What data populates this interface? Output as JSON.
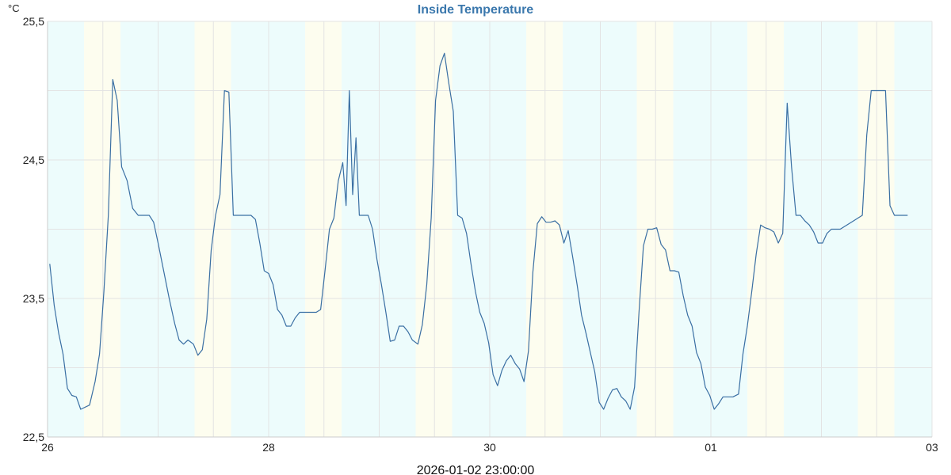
{
  "chart_data": {
    "type": "line",
    "title": "Inside Temperature",
    "y_unit": "°C",
    "footer": "2026-01-02 23:00:00",
    "xlim": [
      0,
      8
    ],
    "ylim": [
      22.5,
      25.5
    ],
    "x_ticks": [
      {
        "value": 0,
        "label": "26"
      },
      {
        "value": 2,
        "label": "28"
      },
      {
        "value": 4,
        "label": "30"
      },
      {
        "value": 6,
        "label": "01"
      },
      {
        "value": 8,
        "label": "03"
      }
    ],
    "y_ticks": [
      {
        "value": 22.5,
        "label": "22,5"
      },
      {
        "value": 23.5,
        "label": "23,5"
      },
      {
        "value": 24.5,
        "label": "24,5"
      },
      {
        "value": 25.5,
        "label": "25,5"
      }
    ],
    "grid": true,
    "grid_step_x": 0.5,
    "grid_step_y": 0.5,
    "bands": [
      {
        "from": 0.0,
        "to": 0.33,
        "kind": "night"
      },
      {
        "from": 0.33,
        "to": 0.66,
        "kind": "day"
      },
      {
        "from": 0.66,
        "to": 1.33,
        "kind": "night"
      },
      {
        "from": 1.33,
        "to": 1.66,
        "kind": "day"
      },
      {
        "from": 1.66,
        "to": 2.33,
        "kind": "night"
      },
      {
        "from": 2.33,
        "to": 2.66,
        "kind": "day"
      },
      {
        "from": 2.66,
        "to": 3.33,
        "kind": "night"
      },
      {
        "from": 3.33,
        "to": 3.66,
        "kind": "day"
      },
      {
        "from": 3.66,
        "to": 4.33,
        "kind": "night"
      },
      {
        "from": 4.33,
        "to": 4.66,
        "kind": "day"
      },
      {
        "from": 4.66,
        "to": 5.33,
        "kind": "night"
      },
      {
        "from": 5.33,
        "to": 5.66,
        "kind": "day"
      },
      {
        "from": 5.66,
        "to": 6.33,
        "kind": "night"
      },
      {
        "from": 6.33,
        "to": 6.66,
        "kind": "day"
      },
      {
        "from": 6.66,
        "to": 7.33,
        "kind": "night"
      },
      {
        "from": 7.33,
        "to": 7.66,
        "kind": "day"
      },
      {
        "from": 7.66,
        "to": 8.0,
        "kind": "night"
      }
    ],
    "colors": {
      "night": "#edfcfc",
      "day": "#fdfdef",
      "line": "#3a6fa3",
      "grid": "#e3e3e3",
      "axis": "#cccccc"
    },
    "series": [
      {
        "points": [
          [
            0.02,
            23.75
          ],
          [
            0.06,
            23.45
          ],
          [
            0.1,
            23.25
          ],
          [
            0.14,
            23.1
          ],
          [
            0.18,
            22.85
          ],
          [
            0.22,
            22.8
          ],
          [
            0.26,
            22.79
          ],
          [
            0.3,
            22.7
          ],
          [
            0.38,
            22.73
          ],
          [
            0.43,
            22.9
          ],
          [
            0.47,
            23.1
          ],
          [
            0.51,
            23.55
          ],
          [
            0.55,
            24.1
          ],
          [
            0.59,
            25.08
          ],
          [
            0.63,
            24.93
          ],
          [
            0.67,
            24.45
          ],
          [
            0.72,
            24.35
          ],
          [
            0.77,
            24.15
          ],
          [
            0.82,
            24.1
          ],
          [
            0.87,
            24.1
          ],
          [
            0.92,
            24.1
          ],
          [
            0.96,
            24.05
          ],
          [
            1.0,
            23.9
          ],
          [
            1.05,
            23.7
          ],
          [
            1.1,
            23.5
          ],
          [
            1.15,
            23.32
          ],
          [
            1.19,
            23.2
          ],
          [
            1.23,
            23.17
          ],
          [
            1.27,
            23.2
          ],
          [
            1.32,
            23.17
          ],
          [
            1.36,
            23.09
          ],
          [
            1.4,
            23.13
          ],
          [
            1.44,
            23.35
          ],
          [
            1.48,
            23.85
          ],
          [
            1.52,
            24.1
          ],
          [
            1.56,
            24.25
          ],
          [
            1.6,
            25.0
          ],
          [
            1.64,
            24.99
          ],
          [
            1.68,
            24.1
          ],
          [
            1.72,
            24.1
          ],
          [
            1.78,
            24.1
          ],
          [
            1.84,
            24.1
          ],
          [
            1.88,
            24.07
          ],
          [
            1.92,
            23.9
          ],
          [
            1.96,
            23.7
          ],
          [
            2.0,
            23.68
          ],
          [
            2.04,
            23.6
          ],
          [
            2.08,
            23.42
          ],
          [
            2.12,
            23.38
          ],
          [
            2.16,
            23.3
          ],
          [
            2.2,
            23.3
          ],
          [
            2.24,
            23.36
          ],
          [
            2.28,
            23.4
          ],
          [
            2.33,
            23.4
          ],
          [
            2.38,
            23.4
          ],
          [
            2.43,
            23.4
          ],
          [
            2.47,
            23.42
          ],
          [
            2.51,
            23.7
          ],
          [
            2.55,
            24.0
          ],
          [
            2.59,
            24.08
          ],
          [
            2.63,
            24.35
          ],
          [
            2.67,
            24.48
          ],
          [
            2.7,
            24.17
          ],
          [
            2.73,
            25.0
          ],
          [
            2.76,
            24.25
          ],
          [
            2.79,
            24.66
          ],
          [
            2.82,
            24.1
          ],
          [
            2.86,
            24.1
          ],
          [
            2.9,
            24.1
          ],
          [
            2.94,
            24.0
          ],
          [
            2.98,
            23.78
          ],
          [
            3.02,
            23.6
          ],
          [
            3.06,
            23.4
          ],
          [
            3.1,
            23.19
          ],
          [
            3.14,
            23.2
          ],
          [
            3.18,
            23.3
          ],
          [
            3.22,
            23.3
          ],
          [
            3.26,
            23.26
          ],
          [
            3.3,
            23.2
          ],
          [
            3.35,
            23.17
          ],
          [
            3.39,
            23.31
          ],
          [
            3.43,
            23.6
          ],
          [
            3.47,
            24.08
          ],
          [
            3.51,
            24.93
          ],
          [
            3.55,
            25.18
          ],
          [
            3.59,
            25.27
          ],
          [
            3.63,
            25.05
          ],
          [
            3.67,
            24.85
          ],
          [
            3.71,
            24.1
          ],
          [
            3.75,
            24.08
          ],
          [
            3.79,
            23.97
          ],
          [
            3.83,
            23.75
          ],
          [
            3.87,
            23.55
          ],
          [
            3.91,
            23.4
          ],
          [
            3.95,
            23.32
          ],
          [
            3.99,
            23.18
          ],
          [
            4.03,
            22.95
          ],
          [
            4.07,
            22.87
          ],
          [
            4.11,
            22.98
          ],
          [
            4.15,
            23.05
          ],
          [
            4.19,
            23.09
          ],
          [
            4.23,
            23.03
          ],
          [
            4.27,
            22.99
          ],
          [
            4.31,
            22.9
          ],
          [
            4.35,
            23.12
          ],
          [
            4.39,
            23.69
          ],
          [
            4.43,
            24.04
          ],
          [
            4.47,
            24.09
          ],
          [
            4.51,
            24.05
          ],
          [
            4.55,
            24.05
          ],
          [
            4.59,
            24.06
          ],
          [
            4.63,
            24.03
          ],
          [
            4.67,
            23.9
          ],
          [
            4.71,
            23.99
          ],
          [
            4.75,
            23.8
          ],
          [
            4.79,
            23.6
          ],
          [
            4.83,
            23.38
          ],
          [
            4.87,
            23.25
          ],
          [
            4.91,
            23.11
          ],
          [
            4.95,
            22.97
          ],
          [
            4.99,
            22.75
          ],
          [
            5.03,
            22.7
          ],
          [
            5.07,
            22.78
          ],
          [
            5.11,
            22.84
          ],
          [
            5.15,
            22.85
          ],
          [
            5.19,
            22.79
          ],
          [
            5.23,
            22.76
          ],
          [
            5.27,
            22.7
          ],
          [
            5.31,
            22.86
          ],
          [
            5.35,
            23.4
          ],
          [
            5.39,
            23.88
          ],
          [
            5.43,
            24.0
          ],
          [
            5.47,
            24.0
          ],
          [
            5.51,
            24.01
          ],
          [
            5.55,
            23.89
          ],
          [
            5.59,
            23.85
          ],
          [
            5.63,
            23.7
          ],
          [
            5.67,
            23.7
          ],
          [
            5.71,
            23.69
          ],
          [
            5.75,
            23.52
          ],
          [
            5.79,
            23.38
          ],
          [
            5.83,
            23.3
          ],
          [
            5.87,
            23.11
          ],
          [
            5.91,
            23.03
          ],
          [
            5.95,
            22.86
          ],
          [
            5.99,
            22.8
          ],
          [
            6.03,
            22.7
          ],
          [
            6.07,
            22.74
          ],
          [
            6.11,
            22.79
          ],
          [
            6.15,
            22.79
          ],
          [
            6.2,
            22.79
          ],
          [
            6.25,
            22.81
          ],
          [
            6.29,
            23.1
          ],
          [
            6.33,
            23.3
          ],
          [
            6.37,
            23.55
          ],
          [
            6.41,
            23.82
          ],
          [
            6.45,
            24.03
          ],
          [
            6.49,
            24.01
          ],
          [
            6.53,
            24.0
          ],
          [
            6.57,
            23.98
          ],
          [
            6.61,
            23.9
          ],
          [
            6.65,
            23.97
          ],
          [
            6.69,
            24.91
          ],
          [
            6.73,
            24.45
          ],
          [
            6.77,
            24.1
          ],
          [
            6.81,
            24.1
          ],
          [
            6.85,
            24.06
          ],
          [
            6.89,
            24.03
          ],
          [
            6.93,
            23.98
          ],
          [
            6.97,
            23.9
          ],
          [
            7.01,
            23.9
          ],
          [
            7.05,
            23.97
          ],
          [
            7.09,
            24.0
          ],
          [
            7.13,
            24.0
          ],
          [
            7.17,
            24.0
          ],
          [
            7.21,
            24.02
          ],
          [
            7.25,
            24.04
          ],
          [
            7.29,
            24.06
          ],
          [
            7.33,
            24.08
          ],
          [
            7.37,
            24.1
          ],
          [
            7.41,
            24.68
          ],
          [
            7.45,
            25.0
          ],
          [
            7.5,
            25.0
          ],
          [
            7.54,
            25.0
          ],
          [
            7.58,
            25.0
          ],
          [
            7.62,
            24.17
          ],
          [
            7.66,
            24.1
          ],
          [
            7.7,
            24.1
          ],
          [
            7.74,
            24.1
          ],
          [
            7.78,
            24.1
          ]
        ]
      }
    ]
  }
}
